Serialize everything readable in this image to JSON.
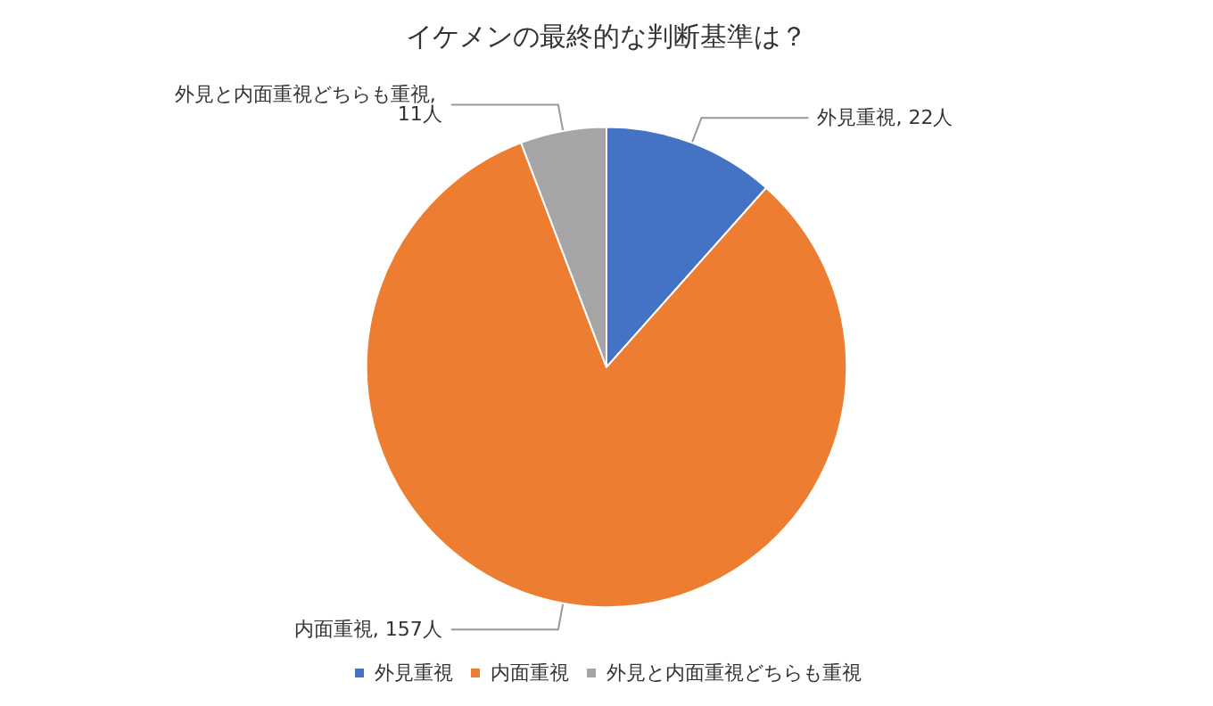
{
  "chart_data": {
    "type": "pie",
    "title": "イケメンの最終的な判断基準は？",
    "categories": [
      "外見重視",
      "内面重視",
      "外見と内面重視どちらも重視"
    ],
    "values": [
      22,
      157,
      11
    ],
    "value_labels": [
      "外見重視, 22人",
      "内面重視, 157人",
      "外見と内面重視どちらも重視, 11人"
    ],
    "colors": [
      "#4472c4",
      "#ed7d31",
      "#a5a5a5"
    ],
    "legend": "bottom"
  }
}
